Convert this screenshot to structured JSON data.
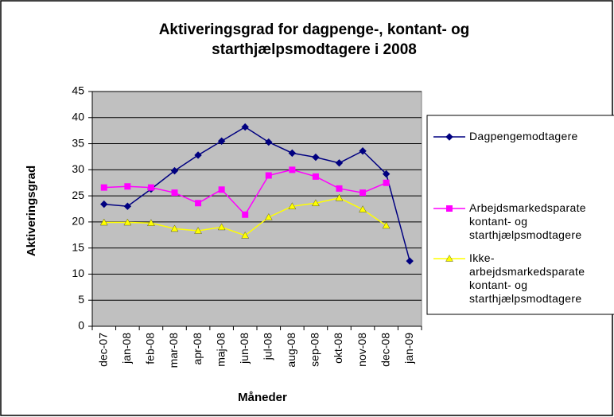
{
  "chart_data": {
    "type": "line",
    "title": "Aktiveringsgrad for dagpenge-, kontant- og starthjælpsmodtagere i 2008",
    "x_label": "Måneder",
    "y_label": "Aktiveringsgrad",
    "categories": [
      "dec-07",
      "jan-08",
      "feb-08",
      "mar-08",
      "apr-08",
      "maj-08",
      "jun-08",
      "jul-08",
      "aug-08",
      "sep-08",
      "okt-08",
      "nov-08",
      "dec-08",
      "jan-09"
    ],
    "series": [
      {
        "name": "Dagpengemodtagere",
        "color": "#000080",
        "marker": "diamond",
        "values": [
          23.4,
          23.0,
          26.3,
          29.8,
          32.8,
          35.5,
          38.2,
          35.3,
          33.2,
          32.4,
          31.3,
          33.6,
          29.2,
          12.5
        ]
      },
      {
        "name": "Arbejdsmarkedsparate kontant- og starthjælpsmodtagere",
        "color": "#ff00ff",
        "marker": "square",
        "values": [
          26.6,
          26.8,
          26.6,
          25.6,
          23.6,
          26.2,
          21.4,
          28.9,
          30.0,
          28.7,
          26.4,
          25.6,
          27.5,
          null
        ]
      },
      {
        "name": "Ikke- arbejdsmarkedsparate kontant- og starthjælpsmodtagere",
        "color": "#ffff00",
        "marker": "triangle",
        "values": [
          19.9,
          19.9,
          19.8,
          18.7,
          18.3,
          19.0,
          17.4,
          20.9,
          23.0,
          23.6,
          24.6,
          22.4,
          19.3,
          null
        ]
      }
    ],
    "ylim": [
      0,
      45
    ],
    "yticks": [
      0,
      5,
      10,
      15,
      20,
      25,
      30,
      35,
      40,
      45
    ],
    "grid": true,
    "legend": "right",
    "plot_background": "#c0c0c0"
  }
}
